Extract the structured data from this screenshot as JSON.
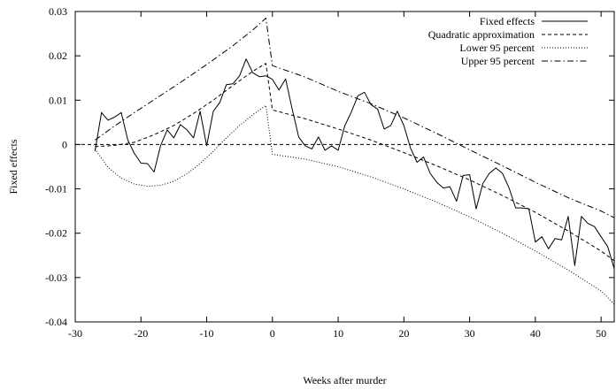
{
  "chart_data": {
    "type": "line",
    "xlabel": "Weeks after murder",
    "ylabel": "Fixed effects",
    "xlim": [
      -30,
      52
    ],
    "ylim": [
      -0.04,
      0.03
    ],
    "xticks": [
      -30,
      -20,
      -10,
      0,
      10,
      20,
      30,
      40,
      50
    ],
    "yticks": [
      -0.04,
      -0.03,
      -0.02,
      -0.01,
      0,
      0.01,
      0.02,
      0.03
    ],
    "xtick_labels": [
      "-30",
      "-20",
      "-10",
      "0",
      "10",
      "20",
      "30",
      "40",
      "50"
    ],
    "ytick_labels": [
      "-0.04",
      "-0.03",
      "-0.02",
      "-0.01",
      "0",
      "0.01",
      "0.02",
      "0.03"
    ],
    "grid": false,
    "legend_position": "top-right",
    "zero_line": true,
    "series": [
      {
        "name": "Fixed effects",
        "style": "solid",
        "points": [
          [
            -27,
            -0.0015
          ],
          [
            -26,
            0.0072
          ],
          [
            -25,
            0.0055
          ],
          [
            -24,
            0.0062
          ],
          [
            -23,
            0.0072
          ],
          [
            -22,
            0.001
          ],
          [
            -21,
            -0.002
          ],
          [
            -20,
            -0.0042
          ],
          [
            -19,
            -0.0043
          ],
          [
            -18,
            -0.0062
          ],
          [
            -17,
            -0.0002
          ],
          [
            -16,
            0.0033
          ],
          [
            -15,
            0.0015
          ],
          [
            -14,
            0.0045
          ],
          [
            -13,
            0.0033
          ],
          [
            -12,
            0.0015
          ],
          [
            -11,
            0.0075
          ],
          [
            -10,
            -0.0003
          ],
          [
            -9,
            0.0075
          ],
          [
            -8,
            0.0095
          ],
          [
            -7,
            0.0135
          ],
          [
            -6,
            0.0137
          ],
          [
            -5,
            0.0155
          ],
          [
            -4,
            0.0193
          ],
          [
            -3,
            0.0162
          ],
          [
            -2,
            0.0153
          ],
          [
            -1,
            0.0155
          ],
          [
            0,
            0.0147
          ],
          [
            1,
            0.0123
          ],
          [
            2,
            0.0148
          ],
          [
            3,
            0.008
          ],
          [
            4,
            0.0017
          ],
          [
            5,
            -0.0003
          ],
          [
            6,
            -0.001
          ],
          [
            7,
            0.0017
          ],
          [
            8,
            -0.0013
          ],
          [
            9,
            -0.0003
          ],
          [
            10,
            -0.0013
          ],
          [
            11,
            0.0042
          ],
          [
            12,
            0.0073
          ],
          [
            13,
            0.011
          ],
          [
            14,
            0.0118
          ],
          [
            15,
            0.009
          ],
          [
            16,
            0.008
          ],
          [
            17,
            0.0035
          ],
          [
            18,
            0.0043
          ],
          [
            19,
            0.0075
          ],
          [
            20,
            0.0043
          ],
          [
            21,
            -0.0008
          ],
          [
            22,
            -0.004
          ],
          [
            23,
            -0.0028
          ],
          [
            24,
            -0.0065
          ],
          [
            25,
            -0.0085
          ],
          [
            26,
            -0.0098
          ],
          [
            27,
            -0.0095
          ],
          [
            28,
            -0.0128
          ],
          [
            29,
            -0.007
          ],
          [
            30,
            -0.0068
          ],
          [
            31,
            -0.0145
          ],
          [
            32,
            -0.0088
          ],
          [
            33,
            -0.0065
          ],
          [
            34,
            -0.0053
          ],
          [
            35,
            -0.0065
          ],
          [
            36,
            -0.0098
          ],
          [
            37,
            -0.0143
          ],
          [
            38,
            -0.0143
          ],
          [
            39,
            -0.0145
          ],
          [
            40,
            -0.022
          ],
          [
            41,
            -0.0208
          ],
          [
            42,
            -0.0235
          ],
          [
            43,
            -0.0212
          ],
          [
            44,
            -0.0215
          ],
          [
            45,
            -0.0162
          ],
          [
            46,
            -0.0273
          ],
          [
            47,
            -0.0162
          ],
          [
            48,
            -0.0178
          ],
          [
            49,
            -0.0185
          ],
          [
            50,
            -0.0208
          ],
          [
            51,
            -0.023
          ],
          [
            52,
            -0.028
          ]
        ]
      },
      {
        "name": "Quadratic approximation",
        "style": "dashed",
        "points": [
          [
            -27,
            -0.0005
          ],
          [
            -24,
            -0.0002
          ],
          [
            -21,
            0.0005
          ],
          [
            -18,
            0.0022
          ],
          [
            -15,
            0.0043
          ],
          [
            -12,
            0.007
          ],
          [
            -9,
            0.01
          ],
          [
            -6,
            0.0133
          ],
          [
            -3,
            0.0165
          ],
          [
            -1,
            0.0183
          ],
          [
            0,
            0.0078
          ],
          [
            5,
            0.0058
          ],
          [
            10,
            0.0035
          ],
          [
            15,
            0.001
          ],
          [
            20,
            -0.0018
          ],
          [
            25,
            -0.0048
          ],
          [
            30,
            -0.008
          ],
          [
            35,
            -0.0115
          ],
          [
            40,
            -0.0153
          ],
          [
            45,
            -0.0195
          ],
          [
            50,
            -0.024
          ],
          [
            52,
            -0.0262
          ]
        ]
      },
      {
        "name": "Lower 95 percent",
        "style": "dotted",
        "points": [
          [
            -27,
            -0.001
          ],
          [
            -25,
            -0.0052
          ],
          [
            -23,
            -0.0076
          ],
          [
            -21,
            -0.0089
          ],
          [
            -19,
            -0.0094
          ],
          [
            -17,
            -0.0092
          ],
          [
            -15,
            -0.0083
          ],
          [
            -13,
            -0.0066
          ],
          [
            -11,
            -0.0043
          ],
          [
            -9,
            -0.0015
          ],
          [
            -7,
            0.0015
          ],
          [
            -5,
            0.0043
          ],
          [
            -3,
            0.0067
          ],
          [
            -1,
            0.0088
          ],
          [
            0,
            -0.0022
          ],
          [
            5,
            -0.0033
          ],
          [
            10,
            -0.005
          ],
          [
            15,
            -0.0073
          ],
          [
            20,
            -0.01
          ],
          [
            25,
            -0.013
          ],
          [
            30,
            -0.0163
          ],
          [
            35,
            -0.02
          ],
          [
            40,
            -0.024
          ],
          [
            45,
            -0.0283
          ],
          [
            50,
            -0.033
          ],
          [
            52,
            -0.036
          ]
        ]
      },
      {
        "name": "Upper 95 percent",
        "style": "dashdot",
        "points": [
          [
            -27,
            0.001
          ],
          [
            -24,
            0.0042
          ],
          [
            -21,
            0.0072
          ],
          [
            -18,
            0.0101
          ],
          [
            -15,
            0.013
          ],
          [
            -12,
            0.016
          ],
          [
            -9,
            0.0191
          ],
          [
            -6,
            0.0223
          ],
          [
            -3,
            0.0258
          ],
          [
            -1,
            0.0285
          ],
          [
            0,
            0.0178
          ],
          [
            5,
            0.0152
          ],
          [
            10,
            0.012
          ],
          [
            15,
            0.0092
          ],
          [
            20,
            0.006
          ],
          [
            25,
            0.0025
          ],
          [
            30,
            -0.0012
          ],
          [
            35,
            -0.0048
          ],
          [
            40,
            -0.0085
          ],
          [
            45,
            -0.012
          ],
          [
            50,
            -0.015
          ],
          [
            52,
            -0.0165
          ]
        ]
      }
    ]
  }
}
